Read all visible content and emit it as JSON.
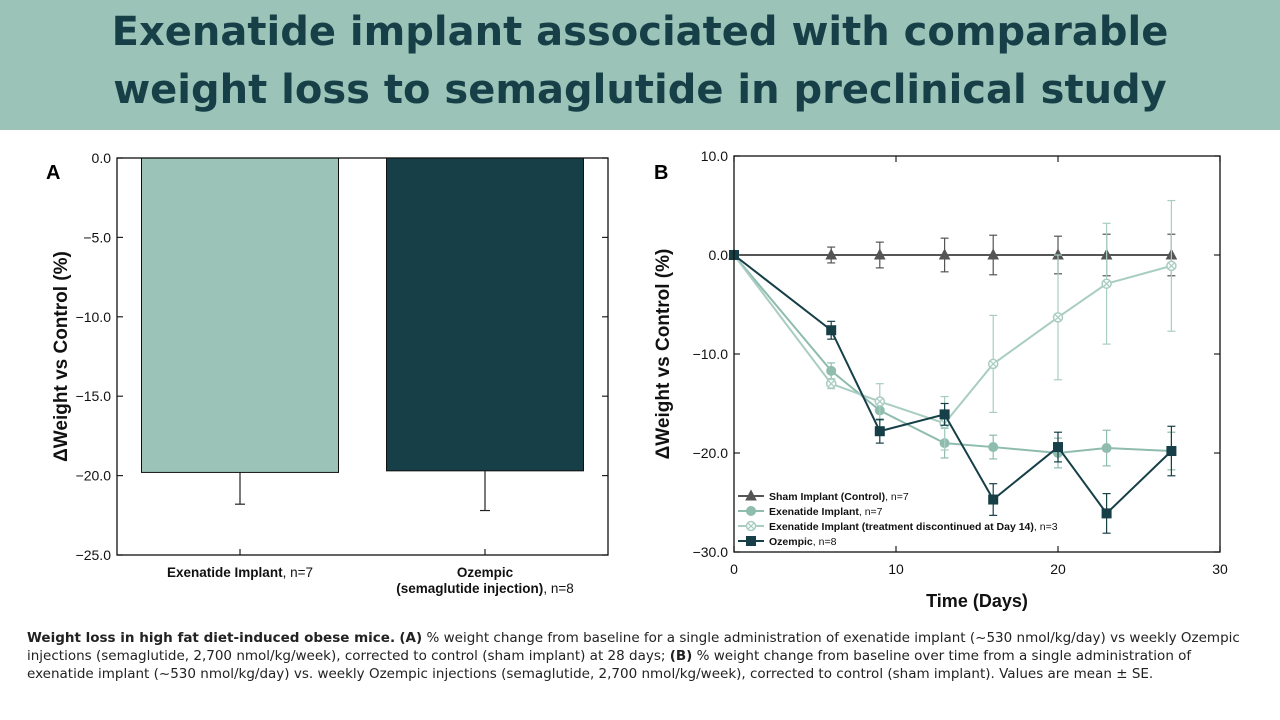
{
  "title": {
    "line1": "Exenatide implant associated with comparable",
    "line2": "weight loss to semaglutide in preclinical study"
  },
  "chart_data": [
    {
      "panel": "A",
      "type": "bar",
      "ylabel": "ΔWeight vs Control (%)",
      "ylim": [
        -25,
        0
      ],
      "yticks": [
        0,
        -5,
        -10,
        -15,
        -20,
        -25
      ],
      "ytick_labels": [
        "0.0",
        "−5.0",
        "−10.0",
        "−15.0",
        "−20.0",
        "−25.0"
      ],
      "categories": [
        {
          "line1_bold": "Exenatide Implant",
          "line1_rest": ", n=7",
          "line2_bold": "",
          "line2_rest": ""
        },
        {
          "line1_bold": "Ozempic",
          "line1_rest": "",
          "line2_bold": "(semaglutide injection)",
          "line2_rest": ", n=8"
        }
      ],
      "values": [
        -19.8,
        -19.7
      ],
      "errors": [
        2.0,
        2.5
      ],
      "colors": [
        "#9bc3b8",
        "#163f48"
      ]
    },
    {
      "panel": "B",
      "type": "line",
      "xlabel": "Time (Days)",
      "ylabel": "ΔWeight vs Control (%)",
      "xlim": [
        0,
        30
      ],
      "ylim": [
        -30,
        10
      ],
      "xticks": [
        0,
        10,
        20,
        30
      ],
      "yticks": [
        10,
        0,
        -10,
        -20,
        -30
      ],
      "ytick_labels": [
        "10.0",
        "0.0",
        "−10.0",
        "−20.0",
        "−30.0"
      ],
      "legend_position": "bottom-left",
      "series": [
        {
          "name_bold": "Sham Implant (Control)",
          "name_rest": ", n=7",
          "marker": "triangle",
          "color": "#555555",
          "x": [
            0,
            6,
            9,
            13,
            16,
            20,
            23,
            27
          ],
          "y": [
            0,
            0,
            0,
            0,
            0,
            0,
            0,
            0
          ],
          "err": [
            0,
            0.8,
            1.3,
            1.7,
            2.0,
            1.9,
            2.1,
            2.1
          ]
        },
        {
          "name_bold": "Exenatide Implant",
          "name_rest": ", n=7",
          "marker": "circle",
          "color": "#8fbcaf",
          "x": [
            0,
            6,
            9,
            13,
            16,
            20,
            23,
            27
          ],
          "y": [
            0,
            -11.7,
            -15.7,
            -19.0,
            -19.4,
            -20.0,
            -19.5,
            -19.8
          ],
          "err": [
            0,
            0.8,
            1.0,
            1.5,
            1.2,
            1.5,
            1.8,
            1.9
          ]
        },
        {
          "name_bold": "Exenatide Implant (treatment discontinued at Day 14)",
          "name_rest": ", n=3",
          "marker": "crossed-circle",
          "color": "#a9cdc2",
          "x": [
            0,
            6,
            9,
            13,
            16,
            20,
            23,
            27
          ],
          "y": [
            0,
            -13.0,
            -14.8,
            -17.0,
            -11.0,
            -6.3,
            -2.9,
            -1.1
          ],
          "err": [
            0,
            0.5,
            1.8,
            2.7,
            4.9,
            6.3,
            6.1,
            6.6
          ]
        },
        {
          "name_bold": "Ozempic",
          "name_rest": ", n=8",
          "marker": "square",
          "color": "#163f48",
          "x": [
            0,
            6,
            9,
            13,
            16,
            20,
            23,
            27
          ],
          "y": [
            0,
            -7.6,
            -17.8,
            -16.1,
            -24.7,
            -19.4,
            -26.1,
            -19.8
          ],
          "err": [
            0,
            0.9,
            1.2,
            1.1,
            1.6,
            1.5,
            2.0,
            2.5
          ]
        }
      ]
    }
  ],
  "caption": {
    "bold_lead": "Weight loss in high fat diet-induced obese mice.",
    "part_a_label": "(A)",
    "part_a_text": " % weight change from baseline for a single administration of exenatide implant (~530 nmol/kg/day) vs weekly Ozempic injections (semaglutide, 2,700 nmol/kg/week), corrected to control (sham implant) at 28 days; ",
    "part_b_label": "(B)",
    "part_b_text": " % weight change from baseline over time from a single administration of exenatide implant (~530 nmol/kg/day) vs. weekly Ozempic injections (semaglutide, 2,700 nmol/kg/week), corrected to control (sham implant). Values are mean ± SE."
  }
}
